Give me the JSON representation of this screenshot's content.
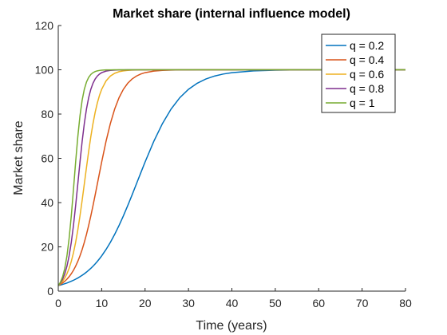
{
  "chart_data": {
    "type": "line",
    "title": "Market share (internal influence model)",
    "xlabel": "Time (years)",
    "ylabel": "Market share",
    "xlim": [
      0,
      80
    ],
    "ylim": [
      0,
      120
    ],
    "xticks": [
      0,
      10,
      20,
      30,
      40,
      50,
      60,
      70,
      80
    ],
    "yticks": [
      0,
      20,
      40,
      60,
      80,
      100,
      120
    ],
    "grid": false,
    "legend_position": "top-right",
    "model": {
      "initial_share": 2.5,
      "saturation": 100
    },
    "x": [
      0,
      0.5,
      1,
      1.5,
      2,
      2.5,
      3,
      3.5,
      4,
      4.5,
      5,
      5.5,
      6,
      6.5,
      7,
      7.5,
      8,
      8.5,
      9,
      9.5,
      10,
      11,
      12,
      13,
      14,
      15,
      16,
      17,
      18,
      19,
      20,
      22,
      24,
      26,
      28,
      30,
      32,
      34,
      36,
      38,
      40,
      45,
      50,
      55,
      60,
      70,
      80
    ],
    "series": [
      {
        "name": "q = 0.2",
        "q": 0.2,
        "color": "#0072BD"
      },
      {
        "name": "q = 0.4",
        "q": 0.4,
        "color": "#D95319"
      },
      {
        "name": "q = 0.6",
        "q": 0.6,
        "color": "#EDB120"
      },
      {
        "name": "q = 0.8",
        "q": 0.8,
        "color": "#7E2F8E"
      },
      {
        "name": "q = 1",
        "q": 1,
        "color": "#77AC30"
      }
    ]
  }
}
